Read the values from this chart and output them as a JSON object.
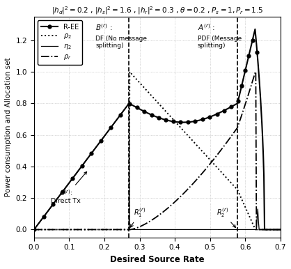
{
  "title": "$|h_d|^2 = 0.2$ , $|h_s|^2 = 1.6$ , $|h_r|^2 = 0.3$ , $\\theta = 0.2$ , $P_s = 1, P_r = 1.5$",
  "xlabel": "Desired Source Rate",
  "ylabel": "Power consumption and Allocation set",
  "xlim": [
    0,
    0.7
  ],
  "ylim": [
    -0.05,
    1.35
  ],
  "yticks": [
    0,
    0.2,
    0.4,
    0.6,
    0.8,
    1.0,
    1.2
  ],
  "xticks": [
    0,
    0.1,
    0.2,
    0.3,
    0.4,
    0.5,
    0.6,
    0.7
  ],
  "R1": 0.27,
  "R2": 0.578,
  "Rpeak": 0.628,
  "Rend": 0.655
}
